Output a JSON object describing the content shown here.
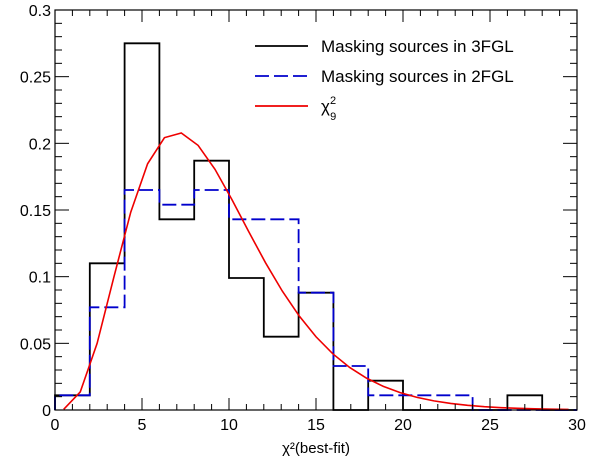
{
  "chart_data": {
    "type": "histogram",
    "xlabel": "χ²(best-fit)",
    "xlim": [
      0,
      30
    ],
    "ylim": [
      0,
      0.3
    ],
    "x_ticks": [
      0,
      5,
      10,
      15,
      20,
      25,
      30
    ],
    "y_ticks": [
      0,
      0.05,
      0.1,
      0.15,
      0.2,
      0.25,
      0.3
    ],
    "x_tick_labels": [
      "0",
      "5",
      "10",
      "15",
      "20",
      "25",
      "30"
    ],
    "y_tick_labels": [
      "0",
      "0.05",
      "0.1",
      "0.15",
      "0.2",
      "0.25",
      "0.3"
    ],
    "bin_edges": [
      0,
      2,
      4,
      6,
      8,
      10,
      12,
      14,
      16,
      18,
      20,
      22,
      24,
      26,
      28,
      30
    ],
    "legend_position": "top-right",
    "series": [
      {
        "name": "Masking sources in 3FGL",
        "style": "step",
        "color": "#000000",
        "values": [
          0.011,
          0.11,
          0.275,
          0.143,
          0.187,
          0.099,
          0.055,
          0.088,
          0.0,
          0.022,
          0.0,
          0.0,
          0.0,
          0.011,
          0.0
        ]
      },
      {
        "name": "Masking sources in 2FGL",
        "style": "step-dashed",
        "color": "#0000cc",
        "values": [
          0.011,
          0.077,
          0.165,
          0.154,
          0.165,
          0.143,
          0.143,
          0.088,
          0.033,
          0.011,
          0.011,
          0.011,
          0.0,
          0.0,
          0.0
        ]
      },
      {
        "name": "χ",
        "name_sub": "9",
        "name_sup": "2",
        "style": "curve",
        "color": "#ee0000",
        "dof": 9,
        "norm": 2
      }
    ]
  }
}
